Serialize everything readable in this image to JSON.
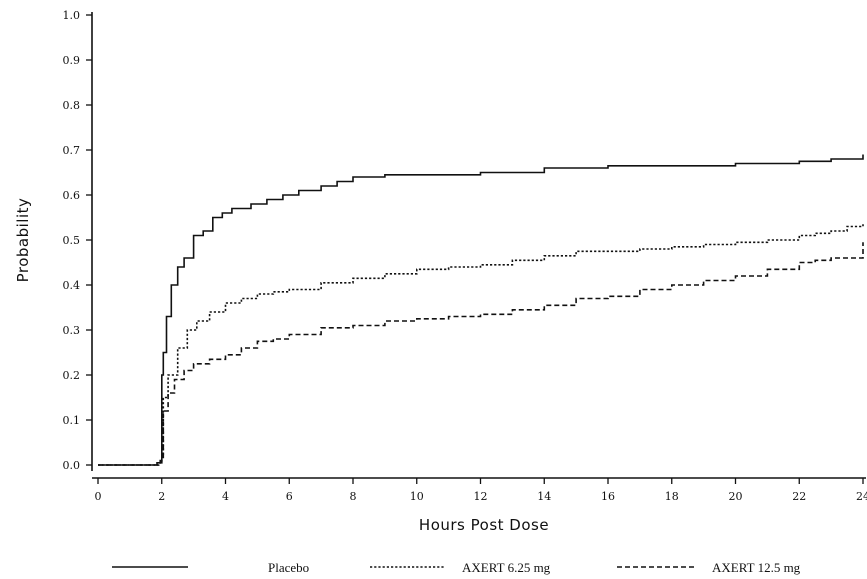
{
  "chart_data": {
    "type": "line",
    "title": "",
    "xlabel": "Hours Post Dose",
    "ylabel": "Probability",
    "xlim": [
      0,
      24
    ],
    "ylim": [
      0.0,
      1.0
    ],
    "xticks": [
      "0",
      "2",
      "4",
      "6",
      "8",
      "10",
      "12",
      "14",
      "16",
      "18",
      "20",
      "22",
      "24"
    ],
    "yticks": [
      "0.0",
      "0.1",
      "0.2",
      "0.3",
      "0.4",
      "0.5",
      "0.6",
      "0.7",
      "0.8",
      "0.9",
      "1.0"
    ],
    "grid": false,
    "legend_position": "bottom",
    "series": [
      {
        "name": "Placebo",
        "style": "solid",
        "color": "#111111",
        "x": [
          0,
          1.6,
          1.85,
          1.95,
          2.0,
          2.05,
          2.15,
          2.3,
          2.5,
          2.7,
          3.0,
          3.3,
          3.6,
          3.9,
          4.2,
          4.8,
          5.3,
          5.8,
          6.3,
          7.0,
          7.5,
          8.0,
          9.0,
          10.0,
          12.0,
          14.0,
          16.0,
          18.0,
          20.0,
          22.0,
          23.0,
          24.0
        ],
        "y": [
          0.0,
          0.0,
          0.005,
          0.01,
          0.2,
          0.25,
          0.33,
          0.4,
          0.44,
          0.46,
          0.51,
          0.52,
          0.55,
          0.56,
          0.57,
          0.58,
          0.59,
          0.6,
          0.61,
          0.62,
          0.63,
          0.64,
          0.645,
          0.645,
          0.65,
          0.66,
          0.665,
          0.665,
          0.67,
          0.675,
          0.68,
          0.69
        ]
      },
      {
        "name": "AXERT 6.25 mg",
        "style": "dotted",
        "color": "#111111",
        "x": [
          0,
          1.6,
          1.9,
          2.0,
          2.05,
          2.2,
          2.5,
          2.8,
          3.1,
          3.5,
          4.0,
          4.5,
          5.0,
          5.5,
          6.0,
          7.0,
          8.0,
          9.0,
          10.0,
          11.0,
          12.0,
          13.0,
          14.0,
          15.0,
          16.0,
          17.0,
          18.0,
          19.0,
          20.0,
          21.0,
          22.0,
          22.5,
          23.0,
          23.5,
          24.0
        ],
        "y": [
          0.0,
          0.0,
          0.005,
          0.02,
          0.15,
          0.2,
          0.26,
          0.3,
          0.32,
          0.34,
          0.36,
          0.37,
          0.38,
          0.385,
          0.39,
          0.405,
          0.415,
          0.425,
          0.435,
          0.44,
          0.445,
          0.455,
          0.465,
          0.475,
          0.475,
          0.48,
          0.485,
          0.49,
          0.495,
          0.5,
          0.51,
          0.515,
          0.52,
          0.53,
          0.535
        ]
      },
      {
        "name": "AXERT 12.5 mg",
        "style": "dashed",
        "color": "#111111",
        "x": [
          0,
          1.6,
          1.9,
          2.0,
          2.05,
          2.2,
          2.4,
          2.7,
          3.0,
          3.5,
          4.0,
          4.5,
          5.0,
          5.5,
          6.0,
          7.0,
          8.0,
          9.0,
          10.0,
          11.0,
          12.0,
          13.0,
          14.0,
          15.0,
          16.0,
          17.0,
          18.0,
          19.0,
          20.0,
          21.0,
          22.0,
          22.5,
          23.0,
          24.0
        ],
        "y": [
          0.0,
          0.0,
          0.005,
          0.01,
          0.12,
          0.16,
          0.19,
          0.21,
          0.225,
          0.235,
          0.245,
          0.26,
          0.275,
          0.28,
          0.29,
          0.305,
          0.31,
          0.32,
          0.325,
          0.33,
          0.335,
          0.345,
          0.355,
          0.37,
          0.375,
          0.39,
          0.4,
          0.41,
          0.42,
          0.435,
          0.45,
          0.455,
          0.46,
          0.495
        ]
      }
    ]
  }
}
